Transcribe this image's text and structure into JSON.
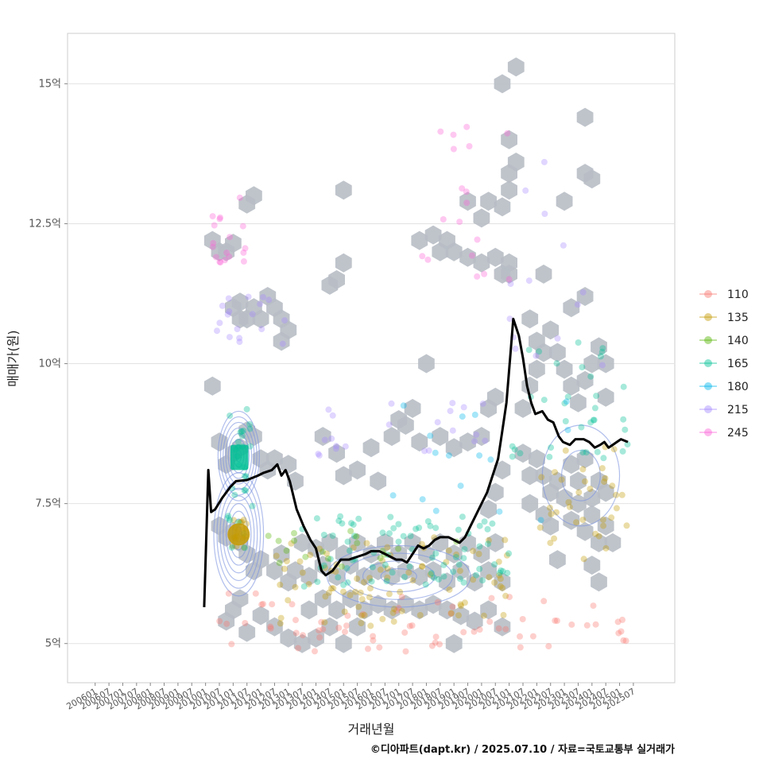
{
  "chart_data": {
    "type": "scatter",
    "title": "",
    "xlabel": "거래년월",
    "ylabel": "매매가(원)",
    "caption": "©디아파트(dapt.kr) / 2025.07.10 / 자료=국토교통부 실거래가",
    "ylim": [
      4.3,
      15.9
    ],
    "xlim": [
      2005.0,
      2027.0
    ],
    "y_ticks": [
      {
        "value": 5,
        "label": "5억"
      },
      {
        "value": 7.5,
        "label": "7.5억"
      },
      {
        "value": 10,
        "label": "10억"
      },
      {
        "value": 12.5,
        "label": "12.5억"
      },
      {
        "value": 15,
        "label": "15억"
      }
    ],
    "x_ticks": [
      "200601",
      "200607",
      "200701",
      "200707",
      "200801",
      "200807",
      "200901",
      "200907",
      "201001",
      "201007",
      "201101",
      "201107",
      "201201",
      "201207",
      "201301",
      "201307",
      "201401",
      "201407",
      "201501",
      "201507",
      "201601",
      "201607",
      "201701",
      "201707",
      "201801",
      "201807",
      "201901",
      "201907",
      "202001",
      "202007",
      "202101",
      "202107",
      "202201",
      "202207",
      "202301",
      "202307",
      "202401",
      "202407",
      "202501",
      "202507"
    ],
    "legend": {
      "position": "right",
      "entries": [
        {
          "name": "110",
          "color": "#F8766D"
        },
        {
          "name": "135",
          "color": "#C49A00"
        },
        {
          "name": "140",
          "color": "#53B400"
        },
        {
          "name": "165",
          "color": "#00C094"
        },
        {
          "name": "180",
          "color": "#00B6EB"
        },
        {
          "name": "215",
          "color": "#A58AFF"
        },
        {
          "name": "245",
          "color": "#FB61D7"
        }
      ]
    },
    "hexbin_color": "#b8bec5",
    "density_color": "#7b93e0",
    "trend_line": {
      "name": "moving average",
      "color": "#000000",
      "points": [
        [
          2009.95,
          5.65
        ],
        [
          2010.1,
          8.1
        ],
        [
          2010.2,
          7.35
        ],
        [
          2010.35,
          7.4
        ],
        [
          2010.6,
          7.6
        ],
        [
          2010.9,
          7.8
        ],
        [
          2011.1,
          7.9
        ],
        [
          2011.5,
          7.92
        ],
        [
          2011.9,
          8.0
        ],
        [
          2012.1,
          8.05
        ],
        [
          2012.4,
          8.1
        ],
        [
          2012.6,
          8.2
        ],
        [
          2012.75,
          8.0
        ],
        [
          2012.9,
          8.1
        ],
        [
          2013.05,
          7.9
        ],
        [
          2013.3,
          7.4
        ],
        [
          2013.55,
          7.1
        ],
        [
          2013.8,
          6.85
        ],
        [
          2014.0,
          6.7
        ],
        [
          2014.2,
          6.3
        ],
        [
          2014.35,
          6.22
        ],
        [
          2014.6,
          6.3
        ],
        [
          2014.9,
          6.5
        ],
        [
          2015.2,
          6.5
        ],
        [
          2015.5,
          6.55
        ],
        [
          2015.8,
          6.6
        ],
        [
          2016.0,
          6.65
        ],
        [
          2016.3,
          6.65
        ],
        [
          2016.5,
          6.6
        ],
        [
          2016.7,
          6.55
        ],
        [
          2016.9,
          6.5
        ],
        [
          2017.1,
          6.5
        ],
        [
          2017.3,
          6.45
        ],
        [
          2017.5,
          6.6
        ],
        [
          2017.7,
          6.75
        ],
        [
          2017.9,
          6.7
        ],
        [
          2018.1,
          6.75
        ],
        [
          2018.3,
          6.85
        ],
        [
          2018.5,
          6.9
        ],
        [
          2018.8,
          6.9
        ],
        [
          2019.0,
          6.85
        ],
        [
          2019.2,
          6.8
        ],
        [
          2019.4,
          6.9
        ],
        [
          2019.6,
          7.1
        ],
        [
          2019.8,
          7.3
        ],
        [
          2020.0,
          7.5
        ],
        [
          2020.2,
          7.7
        ],
        [
          2020.4,
          8.0
        ],
        [
          2020.6,
          8.3
        ],
        [
          2020.75,
          8.8
        ],
        [
          2020.9,
          9.3
        ],
        [
          2021.05,
          10.2
        ],
        [
          2021.15,
          10.8
        ],
        [
          2021.35,
          10.5
        ],
        [
          2021.5,
          10.1
        ],
        [
          2021.65,
          9.6
        ],
        [
          2021.8,
          9.3
        ],
        [
          2021.95,
          9.1
        ],
        [
          2022.2,
          9.15
        ],
        [
          2022.4,
          9.0
        ],
        [
          2022.6,
          8.95
        ],
        [
          2022.8,
          8.7
        ],
        [
          2022.95,
          8.6
        ],
        [
          2023.2,
          8.55
        ],
        [
          2023.4,
          8.65
        ],
        [
          2023.7,
          8.65
        ],
        [
          2023.9,
          8.6
        ],
        [
          2024.1,
          8.5
        ],
        [
          2024.3,
          8.55
        ],
        [
          2024.45,
          8.6
        ],
        [
          2024.6,
          8.5
        ],
        [
          2024.75,
          8.55
        ],
        [
          2024.9,
          8.6
        ],
        [
          2025.05,
          8.65
        ],
        [
          2025.3,
          8.6
        ]
      ]
    },
    "hex_cells": [
      [
        2010.25,
        12.2
      ],
      [
        2010.5,
        12.0
      ],
      [
        2010.75,
        12.0
      ],
      [
        2011.0,
        12.15
      ],
      [
        2011.5,
        12.85
      ],
      [
        2011.75,
        13.0
      ],
      [
        2011.0,
        11.0
      ],
      [
        2011.25,
        10.8
      ],
      [
        2011.5,
        10.8
      ],
      [
        2011.75,
        11.0
      ],
      [
        2012.0,
        10.8
      ],
      [
        2011.25,
        11.1
      ],
      [
        2012.25,
        11.2
      ],
      [
        2012.5,
        11.0
      ],
      [
        2012.75,
        10.8
      ],
      [
        2013.0,
        10.6
      ],
      [
        2012.75,
        10.4
      ],
      [
        2014.5,
        11.4
      ],
      [
        2014.75,
        11.5
      ],
      [
        2015.0,
        11.8
      ],
      [
        2015.0,
        13.1
      ],
      [
        2010.25,
        9.6
      ],
      [
        2017.75,
        12.2
      ],
      [
        2018.25,
        12.3
      ],
      [
        2018.5,
        12.0
      ],
      [
        2018.75,
        12.2
      ],
      [
        2019.0,
        12.0
      ],
      [
        2019.5,
        11.9
      ],
      [
        2020.0,
        11.8
      ],
      [
        2020.5,
        11.9
      ],
      [
        2020.75,
        11.6
      ],
      [
        2021.0,
        11.8
      ],
      [
        2021.0,
        11.6
      ],
      [
        2019.5,
        12.9
      ],
      [
        2020.0,
        12.6
      ],
      [
        2020.25,
        12.9
      ],
      [
        2020.75,
        12.8
      ],
      [
        2021.0,
        13.1
      ],
      [
        2020.75,
        15.0
      ],
      [
        2021.25,
        15.3
      ],
      [
        2021.0,
        14.0
      ],
      [
        2021.25,
        13.6
      ],
      [
        2021.0,
        13.4
      ],
      [
        2023.0,
        12.9
      ],
      [
        2023.75,
        13.4
      ],
      [
        2024.0,
        13.3
      ],
      [
        2023.75,
        14.4
      ],
      [
        2022.25,
        11.6
      ],
      [
        2023.25,
        11.0
      ],
      [
        2023.75,
        11.2
      ],
      [
        2018.0,
        10.0
      ],
      [
        2010.5,
        8.6
      ],
      [
        2010.75,
        8.2
      ],
      [
        2011.0,
        8.4
      ],
      [
        2011.25,
        8.5
      ],
      [
        2011.5,
        8.8
      ],
      [
        2011.75,
        8.7
      ],
      [
        2012.0,
        8.3
      ],
      [
        2012.25,
        8.1
      ],
      [
        2012.5,
        8.3
      ],
      [
        2013.0,
        8.2
      ],
      [
        2013.25,
        7.9
      ],
      [
        2010.5,
        7.1
      ],
      [
        2010.75,
        6.9
      ],
      [
        2011.0,
        7.0
      ],
      [
        2011.25,
        6.8
      ],
      [
        2011.5,
        6.6
      ],
      [
        2011.75,
        6.3
      ],
      [
        2012.0,
        6.5
      ],
      [
        2012.5,
        6.3
      ],
      [
        2012.75,
        6.6
      ],
      [
        2013.0,
        6.1
      ],
      [
        2013.25,
        6.3
      ],
      [
        2010.75,
        5.4
      ],
      [
        2011.0,
        5.6
      ],
      [
        2011.25,
        5.8
      ],
      [
        2011.5,
        5.2
      ],
      [
        2012.0,
        5.5
      ],
      [
        2012.5,
        5.3
      ],
      [
        2013.0,
        5.1
      ],
      [
        2013.5,
        5.0
      ],
      [
        2014.0,
        5.1
      ],
      [
        2014.5,
        5.3
      ],
      [
        2015.0,
        5.0
      ],
      [
        2015.5,
        5.3
      ],
      [
        2013.75,
        5.6
      ],
      [
        2014.25,
        5.8
      ],
      [
        2014.75,
        5.6
      ],
      [
        2015.25,
        5.8
      ],
      [
        2015.75,
        5.6
      ],
      [
        2016.25,
        5.7
      ],
      [
        2016.75,
        5.6
      ],
      [
        2017.25,
        5.7
      ],
      [
        2017.75,
        5.6
      ],
      [
        2018.25,
        5.7
      ],
      [
        2018.75,
        5.6
      ],
      [
        2019.25,
        5.5
      ],
      [
        2019.75,
        5.4
      ],
      [
        2020.25,
        5.6
      ],
      [
        2020.75,
        5.3
      ],
      [
        2019.0,
        5.0
      ],
      [
        2013.75,
        6.2
      ],
      [
        2014.25,
        6.4
      ],
      [
        2014.75,
        6.2
      ],
      [
        2015.25,
        6.4
      ],
      [
        2015.75,
        6.2
      ],
      [
        2016.25,
        6.3
      ],
      [
        2016.75,
        6.2
      ],
      [
        2017.25,
        6.3
      ],
      [
        2017.75,
        6.2
      ],
      [
        2018.25,
        6.3
      ],
      [
        2018.75,
        6.1
      ],
      [
        2019.25,
        6.3
      ],
      [
        2019.75,
        6.1
      ],
      [
        2020.25,
        6.3
      ],
      [
        2020.75,
        6.1
      ],
      [
        2013.5,
        6.8
      ],
      [
        2014.0,
        6.7
      ],
      [
        2014.5,
        6.8
      ],
      [
        2015.0,
        6.6
      ],
      [
        2015.5,
        6.8
      ],
      [
        2016.0,
        6.6
      ],
      [
        2016.5,
        6.8
      ],
      [
        2017.0,
        6.6
      ],
      [
        2017.5,
        6.8
      ],
      [
        2018.0,
        6.6
      ],
      [
        2018.5,
        6.8
      ],
      [
        2019.0,
        6.6
      ],
      [
        2019.5,
        6.8
      ],
      [
        2020.0,
        6.6
      ],
      [
        2020.5,
        6.8
      ],
      [
        2020.25,
        7.4
      ],
      [
        2020.5,
        7.7
      ],
      [
        2020.75,
        8.1
      ],
      [
        2014.25,
        8.7
      ],
      [
        2014.75,
        8.4
      ],
      [
        2015.0,
        8.0
      ],
      [
        2015.5,
        8.1
      ],
      [
        2016.0,
        8.5
      ],
      [
        2016.25,
        7.9
      ],
      [
        2016.75,
        8.7
      ],
      [
        2017.25,
        8.9
      ],
      [
        2017.75,
        8.6
      ],
      [
        2018.5,
        8.7
      ],
      [
        2019.0,
        8.5
      ],
      [
        2019.5,
        8.6
      ],
      [
        2020.0,
        8.7
      ],
      [
        2020.25,
        9.2
      ],
      [
        2020.5,
        9.4
      ],
      [
        2017.0,
        9.0
      ],
      [
        2017.5,
        9.2
      ],
      [
        2021.5,
        9.2
      ],
      [
        2021.75,
        9.6
      ],
      [
        2022.0,
        9.9
      ],
      [
        2022.25,
        10.2
      ],
      [
        2021.75,
        10.8
      ],
      [
        2022.0,
        10.4
      ],
      [
        2022.5,
        10.6
      ],
      [
        2022.75,
        10.2
      ],
      [
        2023.0,
        9.9
      ],
      [
        2023.25,
        9.6
      ],
      [
        2023.5,
        9.3
      ],
      [
        2023.75,
        9.7
      ],
      [
        2024.0,
        10.0
      ],
      [
        2024.25,
        10.3
      ],
      [
        2024.5,
        10.0
      ],
      [
        2024.5,
        9.4
      ],
      [
        2021.5,
        8.4
      ],
      [
        2021.75,
        8.0
      ],
      [
        2022.0,
        8.3
      ],
      [
        2022.25,
        8.0
      ],
      [
        2022.5,
        7.7
      ],
      [
        2022.75,
        7.9
      ],
      [
        2023.0,
        7.6
      ],
      [
        2023.25,
        8.2
      ],
      [
        2023.5,
        7.9
      ],
      [
        2023.75,
        8.3
      ],
      [
        2024.0,
        7.6
      ],
      [
        2024.25,
        7.9
      ],
      [
        2024.5,
        7.7
      ],
      [
        2023.25,
        7.2
      ],
      [
        2023.5,
        7.5
      ],
      [
        2023.75,
        7.0
      ],
      [
        2024.0,
        7.3
      ],
      [
        2024.25,
        6.8
      ],
      [
        2024.5,
        7.1
      ],
      [
        2024.75,
        6.8
      ],
      [
        2022.5,
        7.1
      ],
      [
        2022.75,
        6.5
      ],
      [
        2024.0,
        6.4
      ],
      [
        2024.25,
        6.1
      ],
      [
        2021.75,
        7.5
      ],
      [
        2022.25,
        7.3
      ]
    ]
  }
}
